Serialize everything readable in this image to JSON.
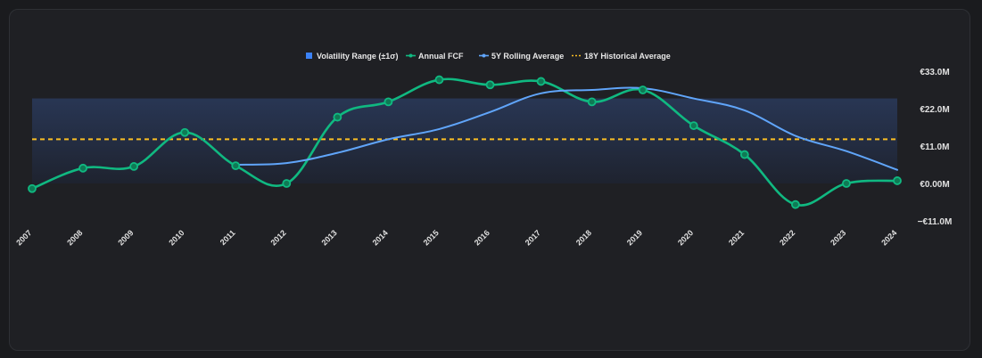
{
  "chart_data": {
    "type": "line",
    "title": "",
    "legend": [
      {
        "label": "Volatility Range (±1σ)",
        "color": "#3b82f6",
        "marker": "square"
      },
      {
        "label": "Annual FCF",
        "color": "#10b981",
        "marker": "line-dot"
      },
      {
        "label": "5Y Rolling Average",
        "color": "#60a5fa",
        "marker": "line-dot"
      },
      {
        "label": "18Y Historical Average",
        "color": "#fbbf24",
        "marker": "dashed"
      }
    ],
    "legend_position": "top-center",
    "categories": [
      "2007",
      "2008",
      "2009",
      "2010",
      "2011",
      "2012",
      "2013",
      "2014",
      "2015",
      "2016",
      "2017",
      "2018",
      "2019",
      "2020",
      "2021",
      "2022",
      "2023",
      "2024"
    ],
    "ylim": [
      -11,
      33
    ],
    "y_ticks": [
      -11,
      0,
      11,
      22,
      33
    ],
    "y_tick_labels": [
      "−€11.0M",
      "€0.00M",
      "€11.0M",
      "€22.0M",
      "€33.0M"
    ],
    "y_axis_position": "right",
    "series": [
      {
        "name": "Annual FCF",
        "color": "#10b981",
        "values": [
          -1.5,
          4.5,
          5.0,
          15.0,
          5.2,
          0.0,
          19.5,
          24.0,
          30.5,
          29.0,
          30.0,
          24.0,
          27.5,
          17.0,
          8.5,
          -6.2,
          0.0,
          0.8
        ]
      },
      {
        "name": "5Y Rolling Average",
        "color": "#60a5fa",
        "values": [
          null,
          null,
          null,
          null,
          5.5,
          6.0,
          9.0,
          13.0,
          16.0,
          21.0,
          26.5,
          27.5,
          28.0,
          25.0,
          21.5,
          14.0,
          9.5,
          4.0
        ]
      }
    ],
    "historical_average": {
      "name": "18Y Historical Average",
      "value": 13.0,
      "color": "#fbbf24"
    },
    "volatility_band": {
      "name": "Volatility Range (±1σ)",
      "low": 0.0,
      "high": 25.0,
      "color": "#3b82f6"
    }
  }
}
